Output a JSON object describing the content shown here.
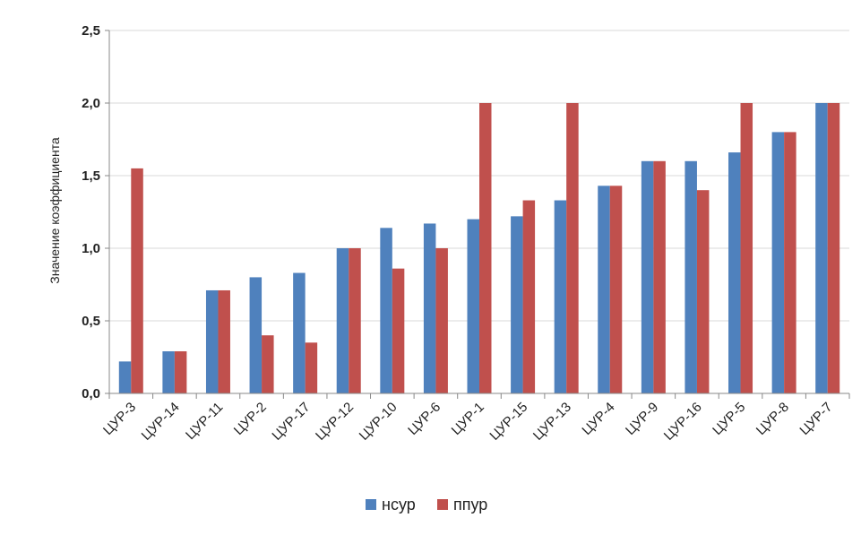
{
  "chart_data": {
    "type": "bar",
    "title": "",
    "xlabel": "",
    "ylabel": "Значение коэффициента",
    "ylim": [
      0,
      2.5
    ],
    "yticks": [
      "0,0",
      "0,5",
      "1,0",
      "1,5",
      "2,0",
      "2,5"
    ],
    "ytick_values": [
      0,
      0.5,
      1.0,
      1.5,
      2.0,
      2.5
    ],
    "grid": "horizontal",
    "legend_position": "bottom",
    "categories": [
      "ЦУР-3",
      "ЦУР-14",
      "ЦУР-11",
      "ЦУР-2",
      "ЦУР-17",
      "ЦУР-12",
      "ЦУР-10",
      "ЦУР-6",
      "ЦУР-1",
      "ЦУР-15",
      "ЦУР-13",
      "ЦУР-4",
      "ЦУР-9",
      "ЦУР-16",
      "ЦУР-5",
      "ЦУР-8",
      "ЦУР-7"
    ],
    "series": [
      {
        "name": "нсур",
        "color": "#4F81BD",
        "values": [
          0.22,
          0.29,
          0.71,
          0.8,
          0.83,
          1.0,
          1.14,
          1.17,
          1.2,
          1.22,
          1.33,
          1.43,
          1.6,
          1.6,
          1.66,
          1.8,
          2.0
        ]
      },
      {
        "name": "ппур",
        "color": "#C0504D",
        "values": [
          1.55,
          0.29,
          0.71,
          0.4,
          0.35,
          1.0,
          0.86,
          1.0,
          2.0,
          1.33,
          2.0,
          1.43,
          1.6,
          1.4,
          2.0,
          1.8,
          2.0
        ]
      }
    ]
  }
}
